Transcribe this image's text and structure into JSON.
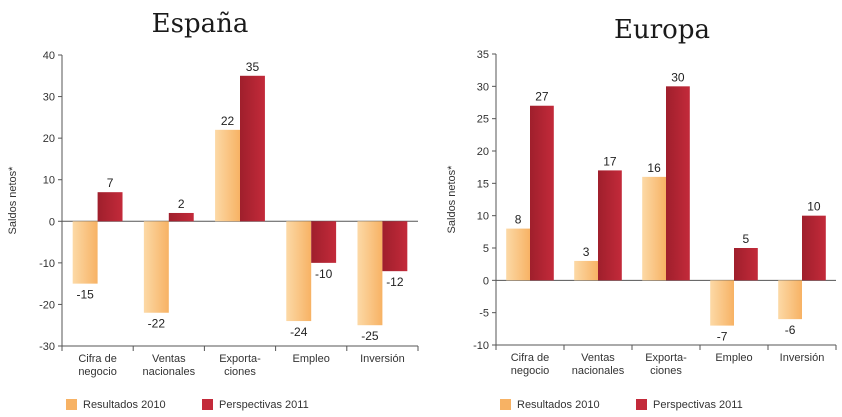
{
  "colors": {
    "resultados": "#f7b264",
    "resultados_light": "#fcd9a6",
    "perspectivas": "#c32a3a",
    "perspectivas_dark": "#9f1f2c",
    "axis": "#555555"
  },
  "chart_data": [
    {
      "type": "bar",
      "title": "España",
      "ylabel": "Saldos netos*",
      "xlabel": "",
      "ylim": [
        -30,
        40
      ],
      "yticks": [
        -30,
        -20,
        -10,
        0,
        10,
        20,
        30,
        40
      ],
      "grid": false,
      "legend_position": "bottom-left",
      "categories": [
        [
          "Cifra de",
          "negocio"
        ],
        [
          "Ventas",
          "nacionales"
        ],
        [
          "Exporta-",
          "ciones"
        ],
        [
          "Empleo"
        ],
        [
          "Inversión"
        ]
      ],
      "series": [
        {
          "name": "Resultados 2010",
          "values": [
            -15,
            -22,
            22,
            -24,
            -25
          ]
        },
        {
          "name": "Perspectivas 2011",
          "values": [
            7,
            2,
            35,
            -10,
            -12
          ]
        }
      ]
    },
    {
      "type": "bar",
      "title": "Europa",
      "ylabel": "Saldos netos*",
      "xlabel": "",
      "ylim": [
        -10,
        35
      ],
      "yticks": [
        -10,
        -5,
        0,
        5,
        10,
        15,
        20,
        25,
        30,
        35
      ],
      "grid": false,
      "legend_position": "bottom-left",
      "categories": [
        [
          "Cifra de",
          "negocio"
        ],
        [
          "Ventas",
          "nacionales"
        ],
        [
          "Exporta-",
          "ciones"
        ],
        [
          "Empleo"
        ],
        [
          "Inversión"
        ]
      ],
      "series": [
        {
          "name": "Resultados 2010",
          "values": [
            8,
            3,
            16,
            -7,
            -6
          ]
        },
        {
          "name": "Perspectivas 2011",
          "values": [
            27,
            17,
            30,
            5,
            10
          ]
        }
      ]
    }
  ]
}
